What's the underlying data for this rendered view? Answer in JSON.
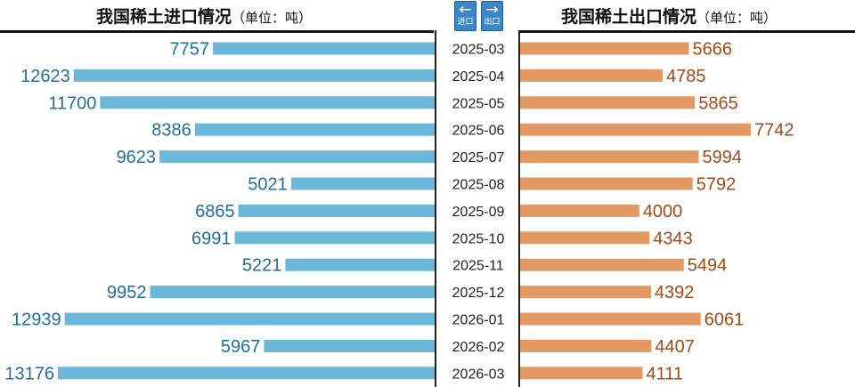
{
  "header": {
    "import_title": "我国稀土进口情况",
    "import_unit": "（单位：吨）",
    "export_title": "我国稀土出口情况",
    "export_unit": "（单位：吨）",
    "import_icon_caption": "进口",
    "export_icon_caption": "出口"
  },
  "icons": {
    "import": "arrow-left-icon",
    "export": "arrow-right-icon"
  },
  "colors": {
    "import_bar": "#6ab7d9",
    "import_text": "#1d6f9c",
    "export_bar": "#e39a62",
    "export_text": "#a34a17",
    "icon_bg": "#3a86c8"
  },
  "chart_data": {
    "type": "bar",
    "orientation": "horizontal",
    "layout": "back-to-back",
    "categories": [
      "2025-03",
      "2025-04",
      "2025-05",
      "2025-06",
      "2025-07",
      "2025-08",
      "2025-09",
      "2025-10",
      "2025-11",
      "2025-12",
      "2026-01",
      "2026-02",
      "2026-03"
    ],
    "series": [
      {
        "name": "我国稀土进口情况",
        "unit": "吨",
        "direction": "left",
        "values": [
          7757,
          12623,
          11700,
          8386,
          9623,
          5021,
          6865,
          6991,
          5221,
          9952,
          12939,
          5967,
          13176
        ]
      },
      {
        "name": "我国稀土出口情况",
        "unit": "吨",
        "direction": "right",
        "values": [
          5666,
          4785,
          5865,
          7742,
          5994,
          5792,
          4000,
          4343,
          5494,
          4392,
          6061,
          4407,
          4111
        ]
      }
    ],
    "data_labels": true,
    "grid": false,
    "legend": "none"
  }
}
